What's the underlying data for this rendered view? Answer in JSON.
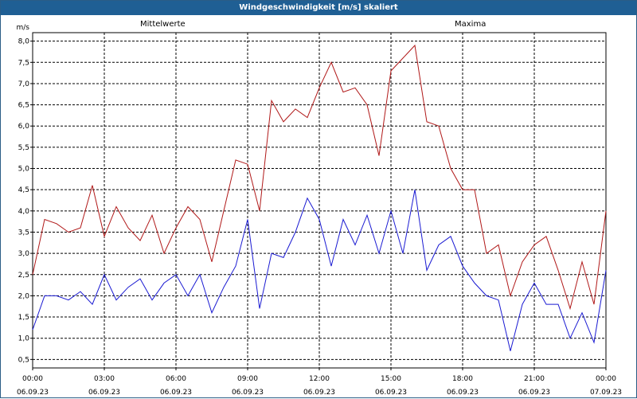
{
  "title": "Windgeschwindigkeit [m/s] skaliert",
  "colors": {
    "titlebar": "#1f5f94",
    "mean": "#1a1ad2",
    "max": "#b01818",
    "grid": "#000000"
  },
  "chart_data": {
    "type": "line",
    "ylabel": "m/s",
    "ylim": [
      0.3,
      8.2
    ],
    "yticks": [
      "0,5",
      "1,0",
      "1,5",
      "2,0",
      "2,5",
      "3,0",
      "3,5",
      "4,0",
      "4,5",
      "5,0",
      "5,5",
      "6,0",
      "6,5",
      "7,0",
      "7,5",
      "8,0"
    ],
    "xticks": [
      {
        "time": "00:00",
        "date": "06.09.23"
      },
      {
        "time": "03:00",
        "date": "06.09.23"
      },
      {
        "time": "06:00",
        "date": "06.09.23"
      },
      {
        "time": "09:00",
        "date": "06.09.23"
      },
      {
        "time": "12:00",
        "date": "06.09.23"
      },
      {
        "time": "15:00",
        "date": "06.09.23"
      },
      {
        "time": "18:00",
        "date": "06.09.23"
      },
      {
        "time": "21:00",
        "date": "06.09.23"
      },
      {
        "time": "00:00",
        "date": "07.09.23"
      }
    ],
    "grid": true,
    "x_hours": [
      0,
      0.5,
      1,
      1.5,
      2,
      2.5,
      3,
      3.5,
      4,
      4.5,
      5,
      5.5,
      6,
      6.5,
      7,
      7.5,
      8,
      8.5,
      9,
      9.5,
      10,
      10.5,
      11,
      11.5,
      12,
      12.5,
      13,
      13.5,
      14,
      14.5,
      15,
      15.5,
      16,
      16.5,
      17,
      17.5,
      18,
      18.5,
      19,
      19.5,
      20,
      20.5,
      21,
      21.5,
      22,
      22.5,
      23,
      23.5,
      24
    ],
    "series": [
      {
        "name": "Mittelwerte",
        "values": [
          1.2,
          2.0,
          2.0,
          1.9,
          2.1,
          1.8,
          2.5,
          1.9,
          2.2,
          2.4,
          1.9,
          2.3,
          2.5,
          2.0,
          2.5,
          1.6,
          2.2,
          2.7,
          3.8,
          1.7,
          3.0,
          2.9,
          3.5,
          4.3,
          3.8,
          2.7,
          3.8,
          3.2,
          3.9,
          3.0,
          4.0,
          3.0,
          4.5,
          2.6,
          3.2,
          3.4,
          2.7,
          2.3,
          2.0,
          1.9,
          0.7,
          1.8,
          2.3,
          1.8,
          1.8,
          1.0,
          1.6,
          0.9,
          2.6
        ]
      },
      {
        "name": "Maxima",
        "values": [
          2.5,
          3.8,
          3.7,
          3.5,
          3.6,
          4.6,
          3.4,
          4.1,
          3.6,
          3.3,
          3.9,
          3.0,
          3.6,
          4.1,
          3.8,
          2.8,
          4.0,
          5.2,
          5.1,
          4.0,
          6.6,
          6.1,
          6.4,
          6.2,
          6.9,
          7.5,
          6.8,
          6.9,
          6.5,
          5.3,
          7.3,
          7.6,
          7.9,
          6.1,
          6.0,
          5.0,
          4.5,
          4.5,
          3.0,
          3.2,
          2.0,
          2.8,
          3.2,
          3.4,
          2.6,
          1.7,
          2.8,
          1.8,
          4.0
        ]
      }
    ]
  }
}
